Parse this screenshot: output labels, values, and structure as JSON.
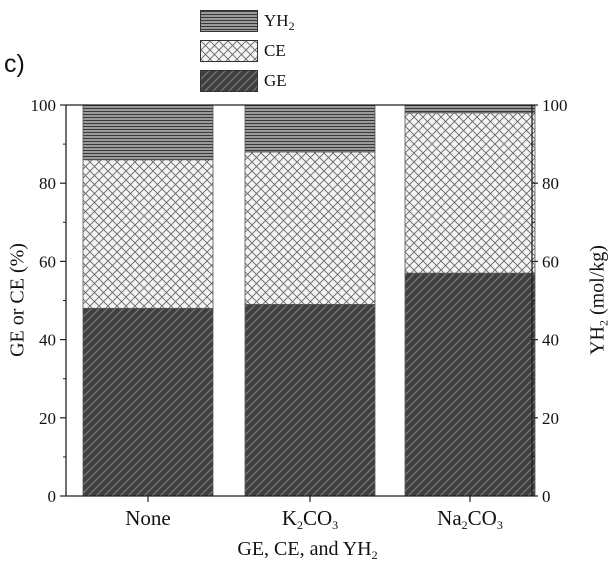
{
  "panel_label": "c)",
  "legend": [
    {
      "name": "YH2",
      "main": "YH",
      "sub": "2",
      "pattern": "horizontal-lines"
    },
    {
      "name": "CE",
      "main": "CE",
      "sub": "",
      "pattern": "cross-hatch"
    },
    {
      "name": "GE",
      "main": "GE",
      "sub": "",
      "pattern": "diagonal-dark"
    }
  ],
  "axis": {
    "ylabel_left": "GE or CE (%)",
    "ylabel_right_main": "YH",
    "ylabel_right_sub": "2",
    "ylabel_right_unit": " (mol/kg)",
    "xlabel_main": "GE, CE, and YH",
    "xlabel_sub": "2"
  },
  "chart_data": {
    "type": "bar",
    "stacked": true,
    "categories": [
      "None",
      "K2CO3",
      "Na2CO3"
    ],
    "category_labels": [
      {
        "parts": [
          {
            "t": "None"
          }
        ]
      },
      {
        "parts": [
          {
            "t": "K"
          },
          {
            "t": "2",
            "sub": true
          },
          {
            "t": "CO"
          },
          {
            "t": "3",
            "sub": true
          }
        ]
      },
      {
        "parts": [
          {
            "t": "Na"
          },
          {
            "t": "2",
            "sub": true
          },
          {
            "t": "CO"
          },
          {
            "t": "3",
            "sub": true
          }
        ]
      }
    ],
    "series": [
      {
        "name": "GE",
        "values": [
          48,
          49,
          57
        ]
      },
      {
        "name": "CE",
        "values": [
          38,
          39,
          41
        ]
      },
      {
        "name": "YH2",
        "values": [
          14,
          12,
          2
        ]
      }
    ],
    "xlabel": "GE, CE, and YH2",
    "ylabel": "GE or CE (%)",
    "ylabel_right": "YH2 (mol/kg)",
    "ylim": [
      0,
      100
    ],
    "ylim_right": [
      0,
      100
    ],
    "yticks": [
      0,
      20,
      40,
      60,
      80,
      100
    ],
    "grid": false,
    "legend_position": "top-center",
    "colors": {
      "GE": "#4a4a4a",
      "CE": "#f2f2f2",
      "YH2": "#777777",
      "axis": "#222222"
    }
  }
}
